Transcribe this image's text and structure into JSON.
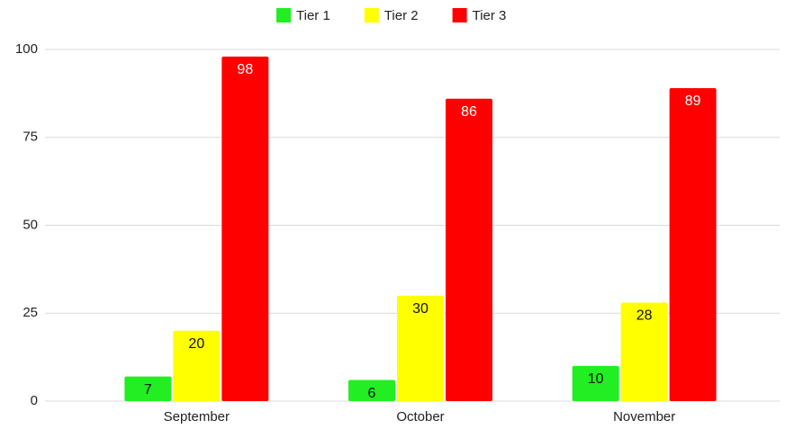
{
  "chart_data": {
    "type": "bar",
    "categories": [
      "September",
      "October",
      "November"
    ],
    "series": [
      {
        "name": "Tier 1",
        "color": "#22ee22",
        "values": [
          7,
          6,
          10
        ]
      },
      {
        "name": "Tier 2",
        "color": "#ffff00",
        "values": [
          20,
          30,
          28
        ]
      },
      {
        "name": "Tier 3",
        "color": "#ff0000",
        "values": [
          98,
          86,
          89
        ]
      }
    ],
    "ylim": [
      0,
      100
    ],
    "yticks": [
      0,
      25,
      50,
      75,
      100
    ],
    "grid": true,
    "legend": "top"
  }
}
